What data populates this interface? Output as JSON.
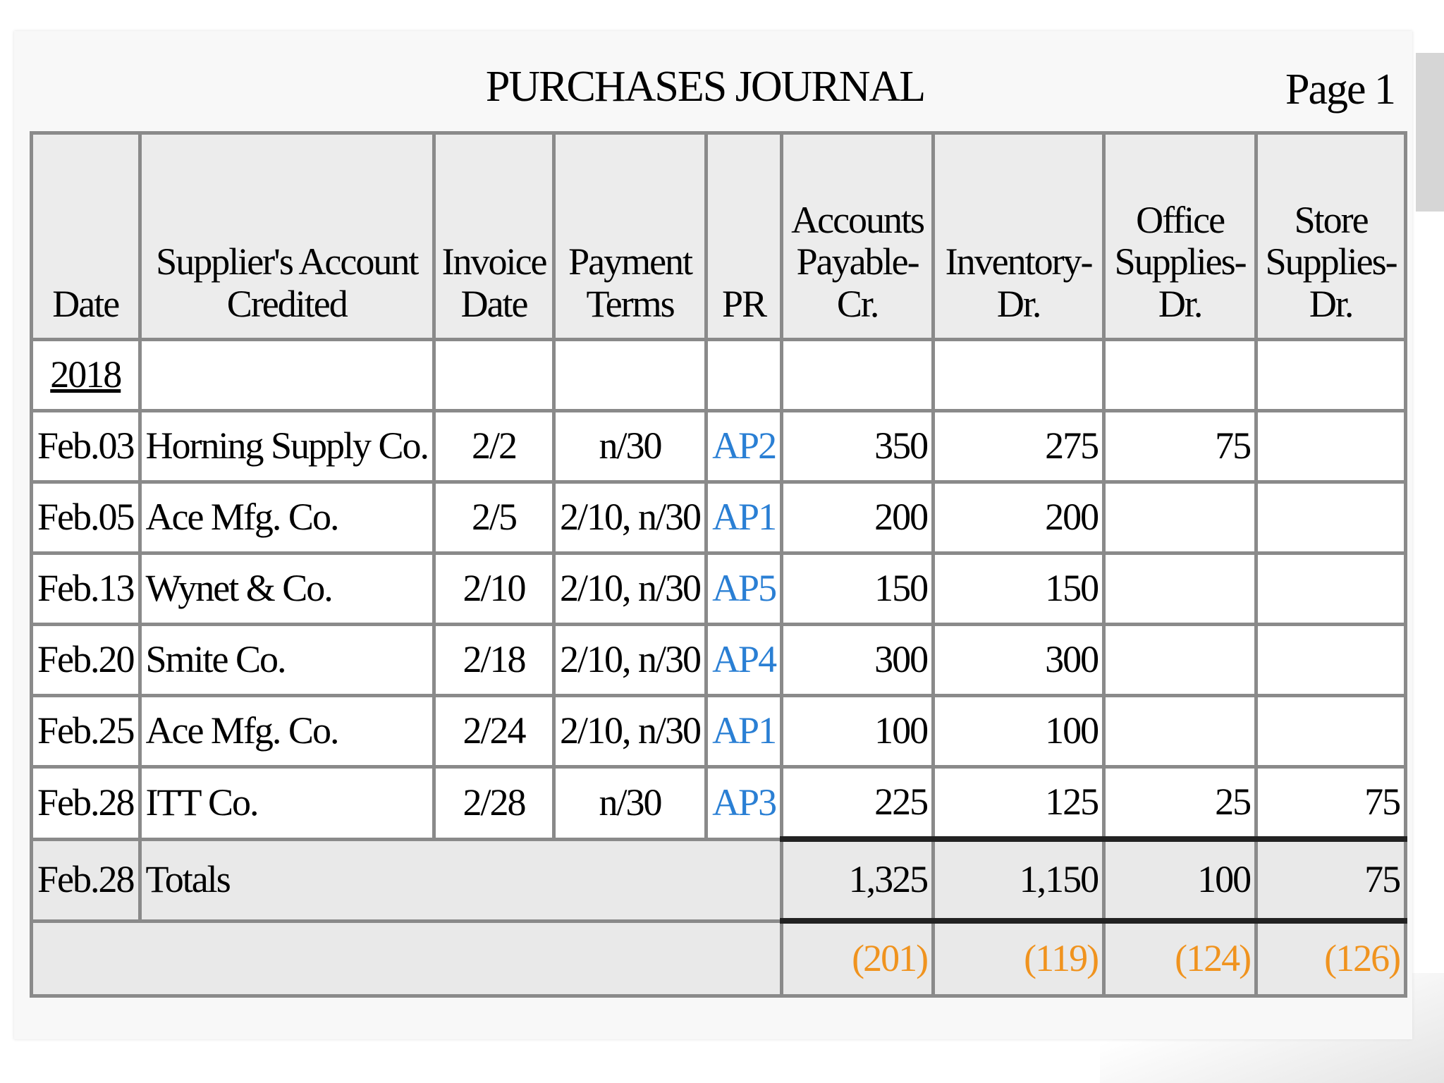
{
  "header": {
    "title": "PURCHASES JOURNAL",
    "page": "Page 1"
  },
  "table": {
    "columns": [
      "Date",
      "Supplier's Account Credited",
      "Invoice Date",
      "Payment Terms",
      "PR",
      "Accounts Payable- Cr.",
      "Inventory- Dr.",
      "Office Supplies- Dr.",
      "Store Supplies- Dr."
    ],
    "year": "2018",
    "rows": [
      {
        "date": "Feb.03",
        "supplier": "Horning Supply Co.",
        "invoice_date": "2/2",
        "terms": "n/30",
        "pr": "AP2",
        "accounts_payable": "350",
        "inventory": "275",
        "office_supplies": "75"
      },
      {
        "date": "Feb.05",
        "supplier": "Ace Mfg. Co.",
        "invoice_date": "2/5",
        "terms": "2/10, n/30",
        "pr": "AP1",
        "accounts_payable": "200",
        "inventory": "200"
      },
      {
        "date": "Feb.13",
        "supplier": "Wynet & Co.",
        "invoice_date": "2/10",
        "terms": "2/10, n/30",
        "pr": "AP5",
        "accounts_payable": "150",
        "inventory": "150"
      },
      {
        "date": "Feb.20",
        "supplier": "Smite Co.",
        "invoice_date": "2/18",
        "terms": "2/10, n/30",
        "pr": "AP4",
        "accounts_payable": "300",
        "inventory": "300"
      },
      {
        "date": "Feb.25",
        "supplier": "Ace Mfg. Co.",
        "invoice_date": "2/24",
        "terms": "2/10, n/30",
        "pr": "AP1",
        "accounts_payable": "100",
        "inventory": "100"
      },
      {
        "date": "Feb.28",
        "supplier": "ITT Co.",
        "invoice_date": "2/28",
        "terms": "n/30",
        "pr": "AP3",
        "accounts_payable": "225",
        "inventory": "125",
        "office_supplies": "25",
        "store_supplies": "75"
      }
    ],
    "totals": {
      "date": "Feb.28",
      "label": "Totals",
      "values": [
        "1,325",
        "1,150",
        "100",
        "75"
      ]
    },
    "posting": [
      "(201)",
      "(119)",
      "(124)",
      "(126)"
    ]
  }
}
